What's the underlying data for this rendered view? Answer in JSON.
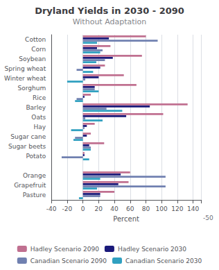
{
  "chart_data": {
    "type": "bar",
    "orientation": "horizontal",
    "title": "Dryland Yields in 2030 - 2090",
    "subtitle": "Without Adaptation",
    "xlabel": "Percent",
    "categories": [
      "Cotton",
      "Corn",
      "Soybean",
      "Spring wheat",
      "Winter wheat",
      "Sorghum",
      "Rice",
      "Barley",
      "Oats",
      "Hay",
      "Sugar cane",
      "Sugar beets",
      "Potato",
      null,
      "Orange",
      "Grapefruit",
      "Pasture"
    ],
    "series": [
      {
        "name": "Hadley Scenario 2090",
        "color": "#c07090",
        "values": [
          80,
          35,
          75,
          28,
          52,
          68,
          10,
          133,
          102,
          15,
          10,
          27,
          2,
          null,
          60,
          58,
          40
        ]
      },
      {
        "name": "Hadley Scenario 2030",
        "color": "#1a1a7a",
        "values": [
          33,
          18,
          38,
          22,
          20,
          15,
          2,
          85,
          55,
          5,
          5,
          8,
          2,
          null,
          48,
          45,
          22
        ]
      },
      {
        "name": "Canadian Scenario 2090",
        "color": "#7080b0",
        "values": [
          95,
          25,
          28,
          -8,
          3,
          15,
          -8,
          30,
          3,
          2,
          -10,
          10,
          -27,
          null,
          105,
          105,
          22
        ]
      },
      {
        "name": "Canadian Scenario 2030",
        "color": "#30a0c0",
        "values": [
          18,
          22,
          17,
          13,
          -20,
          20,
          -10,
          50,
          25,
          -15,
          -12,
          10,
          8,
          null,
          22,
          18,
          -5
        ]
      }
    ],
    "xlim": [
      -40,
      150
    ],
    "xticks": [
      -40,
      -20,
      0,
      20,
      40,
      60,
      80,
      100,
      120,
      140
    ],
    "grid": true,
    "legend": "bottom",
    "annotations": [
      "-50"
    ]
  }
}
